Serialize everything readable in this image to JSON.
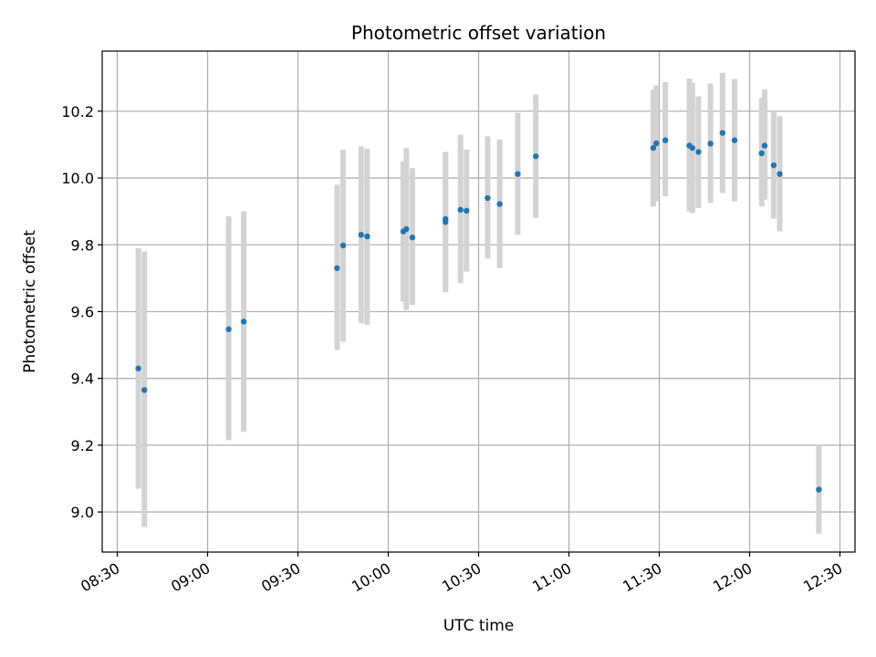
{
  "chart_data": {
    "type": "scatter",
    "title": "Photometric offset variation",
    "xlabel": "UTC time",
    "ylabel": "Photometric offset",
    "x_is_time": true,
    "xlim": [
      "08:25",
      "12:35"
    ],
    "ylim": [
      8.88,
      10.38
    ],
    "xticks": [
      "08:30",
      "09:00",
      "09:30",
      "10:00",
      "10:30",
      "11:00",
      "11:30",
      "12:00",
      "12:30"
    ],
    "yticks": [
      9.0,
      9.2,
      9.4,
      9.6,
      9.8,
      10.0,
      10.2
    ],
    "grid": true,
    "colors": {
      "points": "#1f77b4",
      "errorbars": "#d3d3d3",
      "grid": "#b0b0b0"
    },
    "points": [
      {
        "x": "08:37",
        "y": 9.43,
        "err_low": 9.07,
        "err_high": 9.79
      },
      {
        "x": "08:39",
        "y": 9.365,
        "err_low": 8.955,
        "err_high": 9.78
      },
      {
        "x": "09:07",
        "y": 9.547,
        "err_low": 9.215,
        "err_high": 9.885
      },
      {
        "x": "09:12",
        "y": 9.57,
        "err_low": 9.24,
        "err_high": 9.9
      },
      {
        "x": "09:43",
        "y": 9.73,
        "err_low": 9.485,
        "err_high": 9.98
      },
      {
        "x": "09:45",
        "y": 9.798,
        "err_low": 9.51,
        "err_high": 10.085
      },
      {
        "x": "09:51",
        "y": 9.83,
        "err_low": 9.565,
        "err_high": 10.095
      },
      {
        "x": "09:53",
        "y": 9.825,
        "err_low": 9.56,
        "err_high": 10.088
      },
      {
        "x": "10:05",
        "y": 9.84,
        "err_low": 9.63,
        "err_high": 10.05
      },
      {
        "x": "10:06",
        "y": 9.847,
        "err_low": 9.605,
        "err_high": 10.09
      },
      {
        "x": "10:08",
        "y": 9.822,
        "err_low": 9.62,
        "err_high": 10.03
      },
      {
        "x": "10:19",
        "y": 9.868,
        "err_low": 9.658,
        "err_high": 10.078
      },
      {
        "x": "10:19",
        "y": 9.877,
        "err_low": 9.67,
        "err_high": 10.07
      },
      {
        "x": "10:24",
        "y": 9.905,
        "err_low": 9.685,
        "err_high": 10.13
      },
      {
        "x": "10:26",
        "y": 9.902,
        "err_low": 9.72,
        "err_high": 10.085
      },
      {
        "x": "10:33",
        "y": 9.94,
        "err_low": 9.758,
        "err_high": 10.125
      },
      {
        "x": "10:37",
        "y": 9.922,
        "err_low": 9.73,
        "err_high": 10.115
      },
      {
        "x": "10:43",
        "y": 10.012,
        "err_low": 9.83,
        "err_high": 10.195
      },
      {
        "x": "10:49",
        "y": 10.065,
        "err_low": 9.88,
        "err_high": 10.25
      },
      {
        "x": "11:28",
        "y": 10.09,
        "err_low": 9.915,
        "err_high": 10.265
      },
      {
        "x": "11:29",
        "y": 10.104,
        "err_low": 9.93,
        "err_high": 10.278
      },
      {
        "x": "11:32",
        "y": 10.113,
        "err_low": 9.945,
        "err_high": 10.287
      },
      {
        "x": "11:40",
        "y": 10.097,
        "err_low": 9.9,
        "err_high": 10.298
      },
      {
        "x": "11:41",
        "y": 10.09,
        "err_low": 9.895,
        "err_high": 10.285
      },
      {
        "x": "11:43",
        "y": 10.078,
        "err_low": 9.91,
        "err_high": 10.245
      },
      {
        "x": "11:47",
        "y": 10.103,
        "err_low": 9.925,
        "err_high": 10.283
      },
      {
        "x": "11:51",
        "y": 10.135,
        "err_low": 9.955,
        "err_high": 10.315
      },
      {
        "x": "11:55",
        "y": 10.113,
        "err_low": 9.93,
        "err_high": 10.297
      },
      {
        "x": "12:04",
        "y": 10.074,
        "err_low": 9.915,
        "err_high": 10.24
      },
      {
        "x": "12:05",
        "y": 10.097,
        "err_low": 9.935,
        "err_high": 10.265
      },
      {
        "x": "12:08",
        "y": 10.038,
        "err_low": 9.878,
        "err_high": 10.2
      },
      {
        "x": "12:10",
        "y": 10.012,
        "err_low": 9.84,
        "err_high": 10.185
      },
      {
        "x": "12:23",
        "y": 9.067,
        "err_low": 8.935,
        "err_high": 9.2
      }
    ]
  }
}
